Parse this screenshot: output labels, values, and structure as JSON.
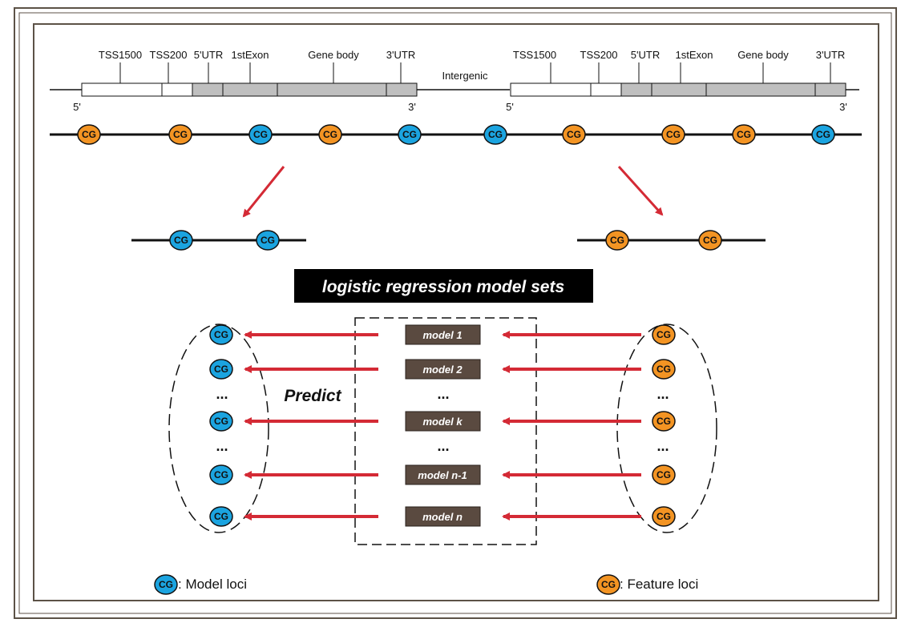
{
  "gene_left": {
    "regions": [
      "TSS1500",
      "TSS200",
      "5'UTR",
      "1stExon",
      "Gene body",
      "3'UTR"
    ],
    "five_prime": "5'",
    "three_prime": "3'"
  },
  "intergenic_label": "Intergenic",
  "gene_right": {
    "regions": [
      "TSS1500",
      "TSS200",
      "5'UTR",
      "1stExon",
      "Gene body",
      "3'UTR"
    ],
    "five_prime": "5'",
    "three_prime": "3'"
  },
  "cg_label": "CG",
  "cg_sequence": [
    "feature",
    "feature",
    "model",
    "feature",
    "model",
    "model",
    "feature",
    "feature",
    "feature",
    "model"
  ],
  "model_set_title": "logistic regression model sets",
  "predict_label": "Predict",
  "models": [
    "model 1",
    "model 2",
    "...",
    "model k",
    "...",
    "model n-1",
    "model n"
  ],
  "ellipsis": "...",
  "legend": {
    "model_loci": ": Model loci",
    "feature_loci": ": Feature loci"
  },
  "colors": {
    "model": "#1ba4e0",
    "feature": "#f39423",
    "arrow": "#d42a35",
    "model_box": "#5a4a40",
    "gray_segment": "#bfbfbf"
  }
}
